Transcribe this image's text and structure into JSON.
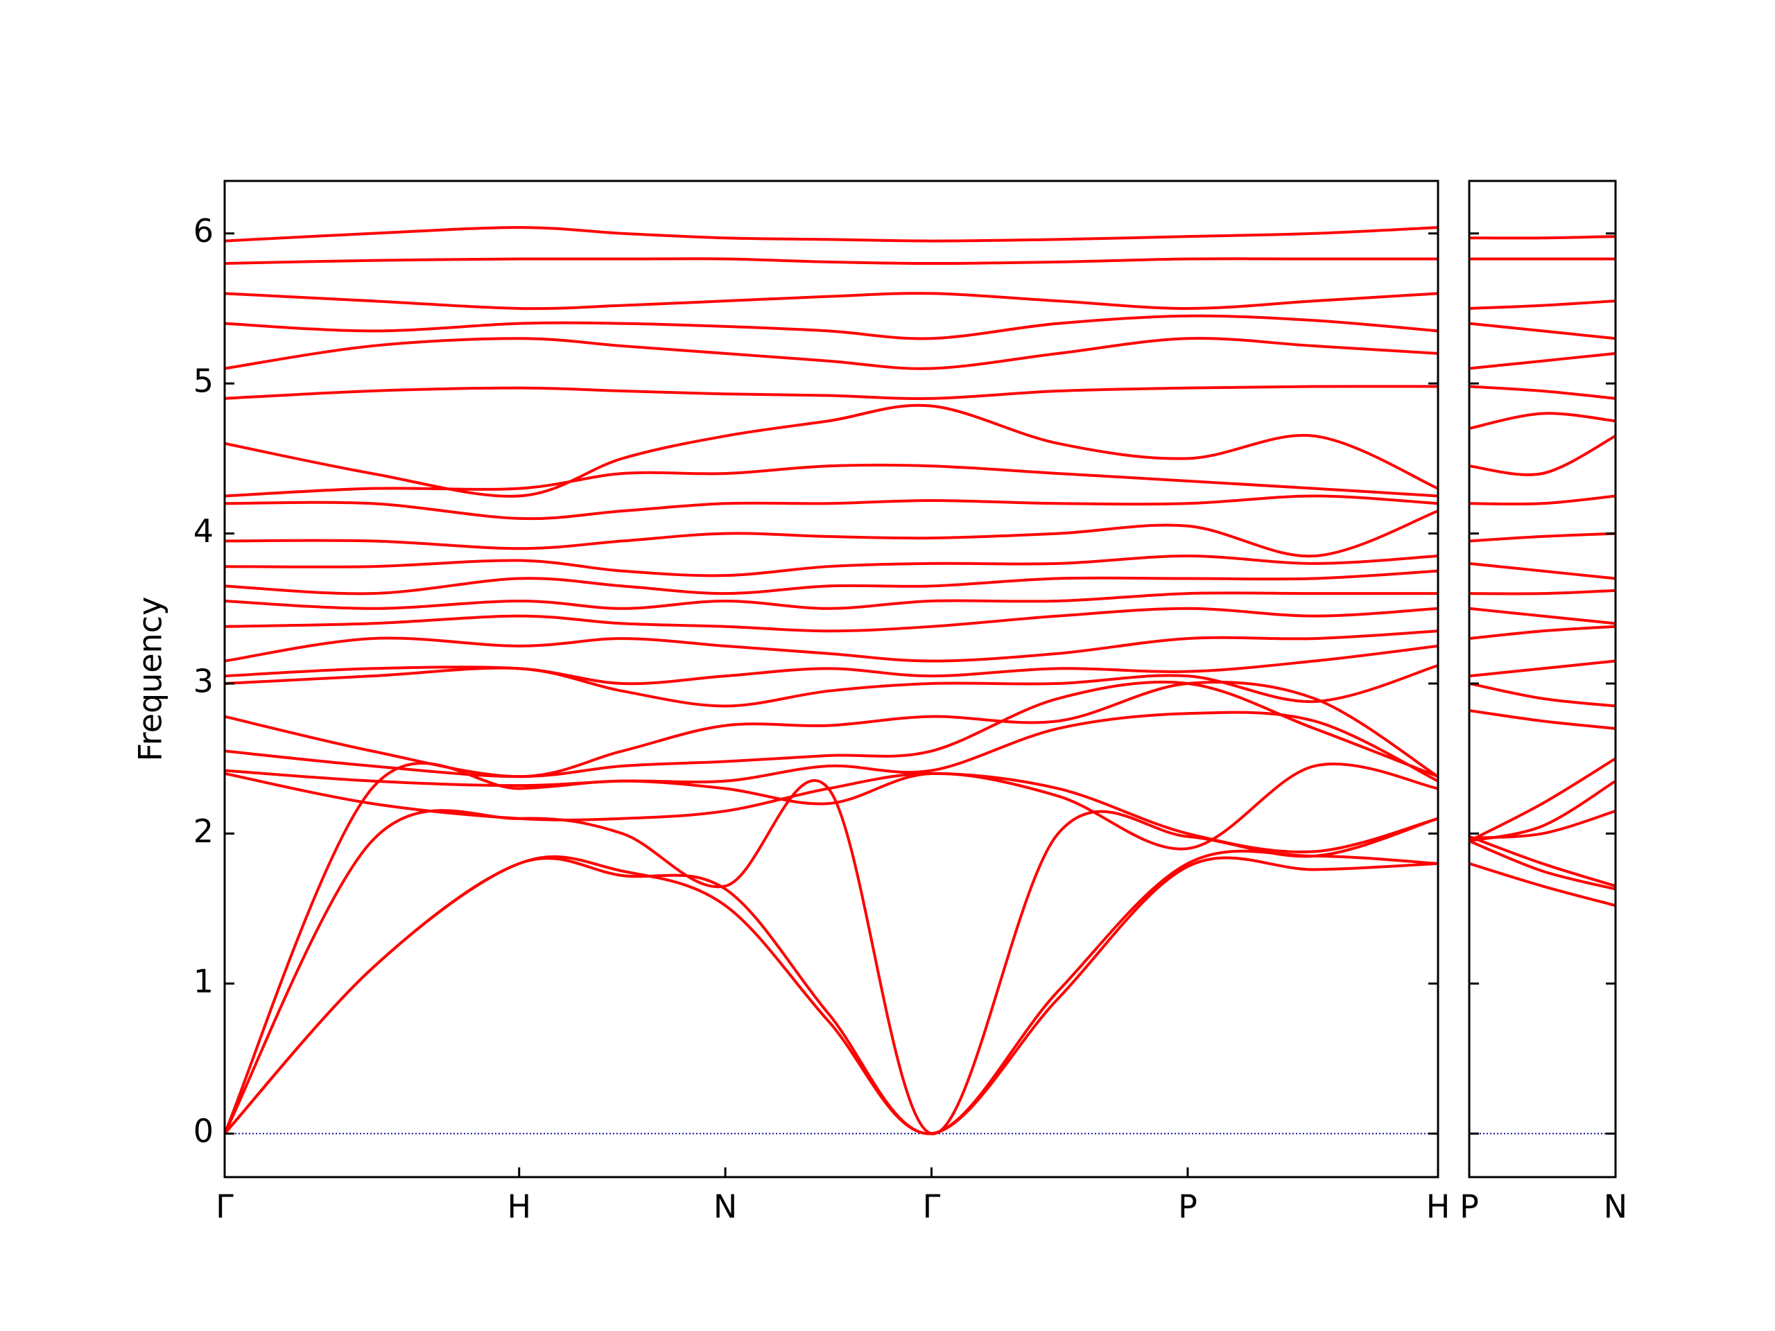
{
  "chart_data": [
    {
      "type": "line",
      "y_label": "Frequency",
      "color": "#ff0000",
      "hline": {
        "value": 0,
        "color": "#1010a0"
      },
      "x": [
        0,
        0.5,
        1.0,
        1.35,
        1.7,
        2.05,
        2.4,
        2.83,
        3.27,
        3.7,
        4.12
      ],
      "xlim": [
        0,
        4.12
      ],
      "xticks": [
        {
          "value": 0,
          "label": "Γ"
        },
        {
          "value": 1.0,
          "label": "H"
        },
        {
          "value": 1.7,
          "label": "N"
        },
        {
          "value": 2.4,
          "label": "Γ"
        },
        {
          "value": 3.27,
          "label": "P"
        },
        {
          "value": 4.12,
          "label": "H"
        }
      ],
      "ylim": [
        -0.29,
        6.35
      ],
      "yticks": [
        0,
        1,
        2,
        3,
        4,
        5,
        6
      ],
      "series": [
        {
          "values": [
            0,
            1.1,
            1.8,
            1.75,
            1.52,
            0.75,
            0,
            0.9,
            1.78,
            1.76,
            1.8
          ]
        },
        {
          "values": [
            0,
            1.1,
            1.8,
            1.72,
            1.63,
            0.8,
            0,
            0.95,
            1.8,
            1.85,
            1.8
          ]
        },
        {
          "values": [
            0,
            1.95,
            2.1,
            2.0,
            1.65,
            2.3,
            0,
            2.0,
            1.98,
            1.85,
            2.1
          ]
        },
        {
          "values": [
            0,
            2.3,
            2.3,
            2.35,
            2.3,
            2.2,
            2.4,
            2.25,
            1.9,
            2.45,
            2.3
          ]
        },
        {
          "values": [
            2.4,
            2.2,
            2.1,
            2.1,
            2.15,
            2.3,
            2.4,
            2.3,
            2.0,
            1.88,
            2.1
          ]
        },
        {
          "values": [
            2.42,
            2.35,
            2.32,
            2.35,
            2.35,
            2.45,
            2.42,
            2.7,
            2.8,
            2.75,
            2.35
          ]
        },
        {
          "values": [
            2.55,
            2.45,
            2.38,
            2.45,
            2.48,
            2.52,
            2.55,
            2.9,
            3.0,
            2.7,
            2.38
          ]
        },
        {
          "values": [
            2.78,
            2.55,
            2.38,
            2.55,
            2.72,
            2.72,
            2.78,
            2.75,
            3.0,
            2.9,
            2.38
          ]
        },
        {
          "values": [
            3.0,
            3.05,
            3.1,
            2.95,
            2.85,
            2.95,
            3.0,
            3.0,
            3.05,
            2.88,
            3.12
          ]
        },
        {
          "values": [
            3.05,
            3.1,
            3.1,
            3.0,
            3.05,
            3.1,
            3.05,
            3.1,
            3.08,
            3.15,
            3.25
          ]
        },
        {
          "values": [
            3.15,
            3.3,
            3.25,
            3.3,
            3.25,
            3.2,
            3.15,
            3.2,
            3.3,
            3.3,
            3.35
          ]
        },
        {
          "values": [
            3.38,
            3.4,
            3.45,
            3.4,
            3.38,
            3.35,
            3.38,
            3.45,
            3.5,
            3.45,
            3.5
          ]
        },
        {
          "values": [
            3.55,
            3.5,
            3.55,
            3.5,
            3.55,
            3.5,
            3.55,
            3.55,
            3.6,
            3.6,
            3.6
          ]
        },
        {
          "values": [
            3.65,
            3.6,
            3.7,
            3.65,
            3.6,
            3.65,
            3.65,
            3.7,
            3.7,
            3.7,
            3.75
          ]
        },
        {
          "values": [
            3.78,
            3.78,
            3.82,
            3.75,
            3.72,
            3.78,
            3.8,
            3.8,
            3.85,
            3.8,
            3.85
          ]
        },
        {
          "values": [
            3.95,
            3.95,
            3.9,
            3.95,
            4.0,
            3.98,
            3.97,
            4.0,
            4.05,
            3.85,
            4.15
          ]
        },
        {
          "values": [
            4.2,
            4.2,
            4.1,
            4.15,
            4.2,
            4.2,
            4.22,
            4.2,
            4.2,
            4.25,
            4.2
          ]
        },
        {
          "values": [
            4.25,
            4.3,
            4.3,
            4.4,
            4.4,
            4.45,
            4.45,
            4.4,
            4.35,
            4.3,
            4.25
          ]
        },
        {
          "values": [
            4.6,
            4.4,
            4.25,
            4.5,
            4.65,
            4.75,
            4.85,
            4.6,
            4.5,
            4.65,
            4.3
          ]
        },
        {
          "values": [
            4.9,
            4.95,
            4.97,
            4.95,
            4.93,
            4.92,
            4.9,
            4.95,
            4.97,
            4.98,
            4.98
          ]
        },
        {
          "values": [
            5.1,
            5.25,
            5.3,
            5.25,
            5.2,
            5.15,
            5.1,
            5.2,
            5.3,
            5.25,
            5.2
          ]
        },
        {
          "values": [
            5.4,
            5.35,
            5.4,
            5.4,
            5.38,
            5.35,
            5.3,
            5.4,
            5.45,
            5.42,
            5.35
          ]
        },
        {
          "values": [
            5.6,
            5.55,
            5.5,
            5.52,
            5.55,
            5.58,
            5.6,
            5.55,
            5.5,
            5.55,
            5.6
          ]
        },
        {
          "values": [
            5.8,
            5.82,
            5.83,
            5.83,
            5.83,
            5.81,
            5.8,
            5.81,
            5.83,
            5.83,
            5.83
          ]
        },
        {
          "values": [
            5.95,
            6.0,
            6.04,
            6.0,
            5.97,
            5.96,
            5.95,
            5.96,
            5.98,
            6.0,
            6.04
          ]
        }
      ]
    },
    {
      "type": "line",
      "color": "#ff0000",
      "hline": {
        "value": 0,
        "color": "#1010a0"
      },
      "x": [
        0,
        0.25,
        0.5
      ],
      "xlim": [
        0,
        0.5
      ],
      "xticks": [
        {
          "value": 0,
          "label": "P"
        },
        {
          "value": 0.5,
          "label": "N"
        }
      ],
      "ylim": [
        -0.29,
        6.35
      ],
      "yticks": [
        0,
        1,
        2,
        3,
        4,
        5,
        6
      ],
      "series": [
        {
          "values": [
            1.8,
            1.65,
            1.52
          ]
        },
        {
          "values": [
            1.95,
            1.75,
            1.63
          ]
        },
        {
          "values": [
            1.98,
            1.8,
            1.65
          ]
        },
        {
          "values": [
            1.95,
            2.2,
            2.5
          ]
        },
        {
          "values": [
            1.95,
            2.05,
            2.35
          ]
        },
        {
          "values": [
            1.97,
            2.0,
            2.15
          ]
        },
        {
          "values": [
            2.82,
            2.75,
            2.7
          ]
        },
        {
          "values": [
            3.0,
            2.9,
            2.85
          ]
        },
        {
          "values": [
            3.05,
            3.1,
            3.15
          ]
        },
        {
          "values": [
            3.3,
            3.35,
            3.38
          ]
        },
        {
          "values": [
            3.5,
            3.45,
            3.4
          ]
        },
        {
          "values": [
            3.6,
            3.6,
            3.62
          ]
        },
        {
          "values": [
            3.8,
            3.75,
            3.7
          ]
        },
        {
          "values": [
            3.95,
            3.98,
            4.0
          ]
        },
        {
          "values": [
            4.2,
            4.2,
            4.25
          ]
        },
        {
          "values": [
            4.45,
            4.4,
            4.65
          ]
        },
        {
          "values": [
            4.7,
            4.8,
            4.75
          ]
        },
        {
          "values": [
            4.98,
            4.95,
            4.9
          ]
        },
        {
          "values": [
            5.1,
            5.15,
            5.2
          ]
        },
        {
          "values": [
            5.4,
            5.35,
            5.3
          ]
        },
        {
          "values": [
            5.5,
            5.52,
            5.55
          ]
        },
        {
          "values": [
            5.83,
            5.83,
            5.83
          ]
        },
        {
          "values": [
            5.97,
            5.97,
            5.98
          ]
        }
      ]
    }
  ]
}
